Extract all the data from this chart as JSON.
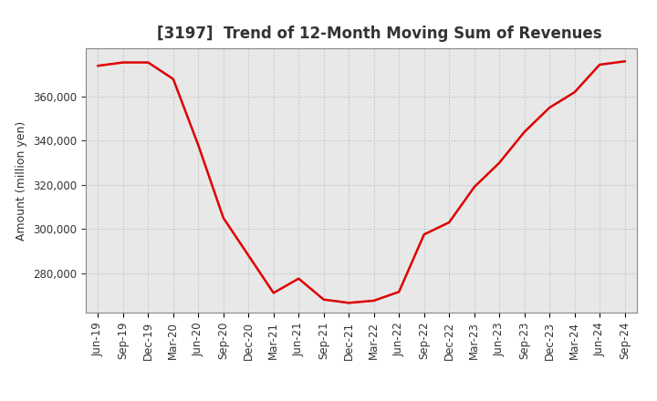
{
  "title": "[3197]  Trend of 12-Month Moving Sum of Revenues",
  "ylabel": "Amount (million yen)",
  "line_color": "#dd0000",
  "background_color": "#ffffff",
  "plot_bg_color": "#e8e8e8",
  "grid_color": "#bbbbbb",
  "title_color": "#333333",
  "x_labels": [
    "Jun-19",
    "Sep-19",
    "Dec-19",
    "Mar-20",
    "Jun-20",
    "Sep-20",
    "Dec-20",
    "Mar-21",
    "Jun-21",
    "Sep-21",
    "Dec-21",
    "Mar-22",
    "Jun-22",
    "Sep-22",
    "Dec-22",
    "Mar-23",
    "Jun-23",
    "Sep-23",
    "Dec-23",
    "Mar-24",
    "Jun-24",
    "Sep-24"
  ],
  "y_values": [
    374000,
    375500,
    375500,
    368000,
    338000,
    305000,
    288000,
    271000,
    277500,
    268000,
    266500,
    267500,
    271500,
    297500,
    303000,
    319000,
    330000,
    344000,
    355000,
    362000,
    374500,
    376000
  ],
  "ylim_min": 262000,
  "ylim_max": 382000,
  "ytick_values": [
    280000,
    300000,
    320000,
    340000,
    360000
  ],
  "title_fontsize": 12,
  "label_fontsize": 9,
  "tick_fontsize": 8.5
}
